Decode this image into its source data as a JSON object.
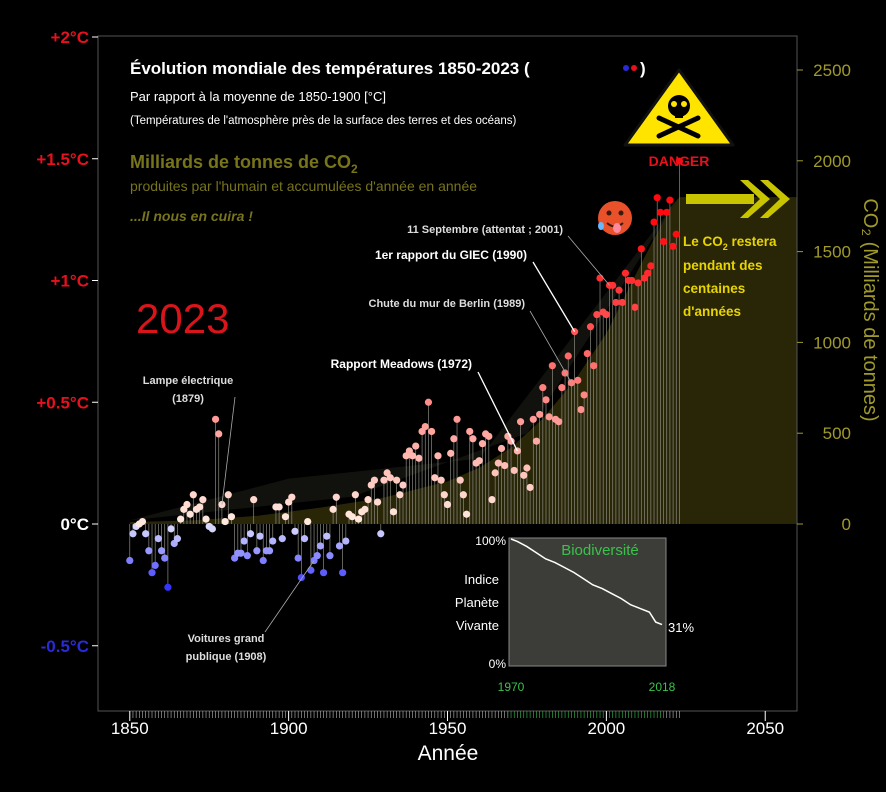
{
  "title": "Évolution mondiale des températures 1850-2023 (",
  "title_close": ")",
  "subtitle1": "Par rapport à la moyenne de 1850-1900 [°C]",
  "subtitle2": "(Températures de l'atmosphère près de la surface des terres et des océans)",
  "co2_heading": "Milliards de tonnes de CO",
  "co2_heading_sub": "2",
  "co2_line2": "produites par l'humain et accumulées d'année en année",
  "co2_line3": "...Il nous en cuira !",
  "year_big": "2023",
  "danger": "DANGER",
  "co2_stays": [
    "Le CO",
    "2",
    " restera",
    "pendant des",
    "centaines",
    "d'années"
  ],
  "colors": {
    "warm": "#e8101c",
    "cool": "#2a2ad8",
    "olive": "#a09a2a",
    "co2_fill": "#2b2808",
    "yellow": "#ffe400",
    "green": "#39c34a",
    "panel": "#3c3c38"
  },
  "chart_data": {
    "type": "scatter",
    "xlabel": "Année",
    "ylabel_left": "",
    "ylabel_right": "CO₂ (Milliards de tonnes)",
    "xlim": [
      1840,
      2060
    ],
    "ylim_temp": [
      -0.75,
      2.0
    ],
    "ylim_co2": [
      0,
      2640
    ],
    "x_ticks": [
      "1850",
      "1900",
      "1950",
      "2000",
      "2050"
    ],
    "y_ticks_left": [
      "+2°C",
      "+1.5°C",
      "+1°C",
      "+0.5°C",
      "0°C",
      "-0.5°C"
    ],
    "y_ticks_right": [
      "2500",
      "2000",
      "1500",
      "1000",
      "500",
      "0"
    ],
    "temperature_anomaly": {
      "years": [
        1850,
        1851,
        1852,
        1853,
        1854,
        1855,
        1856,
        1857,
        1858,
        1859,
        1860,
        1861,
        1862,
        1863,
        1864,
        1865,
        1866,
        1867,
        1868,
        1869,
        1870,
        1871,
        1872,
        1873,
        1874,
        1875,
        1876,
        1877,
        1878,
        1879,
        1880,
        1881,
        1882,
        1883,
        1884,
        1885,
        1886,
        1887,
        1888,
        1889,
        1890,
        1891,
        1892,
        1893,
        1894,
        1895,
        1896,
        1897,
        1898,
        1899,
        1900,
        1901,
        1902,
        1903,
        1904,
        1905,
        1906,
        1907,
        1908,
        1909,
        1910,
        1911,
        1912,
        1913,
        1914,
        1915,
        1916,
        1917,
        1918,
        1919,
        1920,
        1921,
        1922,
        1923,
        1924,
        1925,
        1926,
        1927,
        1928,
        1929,
        1930,
        1931,
        1932,
        1933,
        1934,
        1935,
        1936,
        1937,
        1938,
        1939,
        1940,
        1941,
        1942,
        1943,
        1944,
        1945,
        1946,
        1947,
        1948,
        1949,
        1950,
        1951,
        1952,
        1953,
        1954,
        1955,
        1956,
        1957,
        1958,
        1959,
        1960,
        1961,
        1962,
        1963,
        1964,
        1965,
        1966,
        1967,
        1968,
        1969,
        1970,
        1971,
        1972,
        1973,
        1974,
        1975,
        1976,
        1977,
        1978,
        1979,
        1980,
        1981,
        1982,
        1983,
        1984,
        1985,
        1986,
        1987,
        1988,
        1989,
        1990,
        1991,
        1992,
        1993,
        1994,
        1995,
        1996,
        1997,
        1998,
        1999,
        2000,
        2001,
        2002,
        2003,
        2004,
        2005,
        2006,
        2007,
        2008,
        2009,
        2010,
        2011,
        2012,
        2013,
        2014,
        2015,
        2016,
        2017,
        2018,
        2019,
        2020,
        2021,
        2022,
        2023
      ],
      "values": [
        -0.15,
        -0.04,
        -0.01,
        0.0,
        0.01,
        -0.04,
        -0.11,
        -0.2,
        -0.17,
        -0.06,
        -0.11,
        -0.14,
        -0.26,
        -0.02,
        -0.08,
        -0.06,
        0.02,
        0.06,
        0.08,
        0.04,
        0.12,
        0.06,
        0.07,
        0.1,
        0.02,
        -0.01,
        -0.02,
        0.43,
        0.37,
        0.08,
        0.01,
        0.12,
        0.03,
        -0.14,
        -0.12,
        -0.12,
        -0.07,
        -0.13,
        -0.04,
        0.1,
        -0.11,
        -0.05,
        -0.15,
        -0.11,
        -0.11,
        -0.07,
        0.07,
        0.07,
        -0.06,
        0.03,
        0.09,
        0.11,
        -0.03,
        -0.14,
        -0.22,
        -0.06,
        0.01,
        -0.19,
        -0.15,
        -0.13,
        -0.09,
        -0.2,
        -0.05,
        -0.13,
        0.06,
        0.11,
        -0.09,
        -0.2,
        -0.07,
        0.04,
        0.03,
        0.12,
        0.02,
        0.05,
        0.06,
        0.1,
        0.16,
        0.18,
        0.09,
        -0.04,
        0.18,
        0.21,
        0.19,
        0.05,
        0.18,
        0.12,
        0.16,
        0.28,
        0.3,
        0.28,
        0.32,
        0.27,
        0.38,
        0.4,
        0.5,
        0.38,
        0.19,
        0.28,
        0.18,
        0.12,
        0.08,
        0.29,
        0.35,
        0.43,
        0.18,
        0.12,
        0.04,
        0.38,
        0.35,
        0.25,
        0.26,
        0.33,
        0.37,
        0.36,
        0.1,
        0.21,
        0.25,
        0.31,
        0.24,
        0.36,
        0.34,
        0.22,
        0.3,
        0.42,
        0.2,
        0.23,
        0.15,
        0.43,
        0.34,
        0.45,
        0.56,
        0.51,
        0.44,
        0.65,
        0.43,
        0.42,
        0.56,
        0.62,
        0.69,
        0.58,
        0.79,
        0.59,
        0.47,
        0.53,
        0.7,
        0.81,
        0.65,
        0.86,
        1.01,
        0.87,
        0.86,
        0.98,
        0.98,
        0.91,
        0.96,
        0.91,
        1.03,
        1.0,
        1.0,
        0.89,
        0.99,
        1.13,
        1.01,
        1.03,
        1.06,
        1.24,
        1.34,
        1.28,
        1.16,
        1.28,
        1.33,
        1.14,
        1.19,
        1.49
      ]
    },
    "co2_cumulative": {
      "years": [
        1850,
        1870,
        1890,
        1910,
        1930,
        1950,
        1960,
        1970,
        1980,
        1990,
        2000,
        2010,
        2020,
        2023
      ],
      "values": [
        10,
        20,
        45,
        90,
        145,
        235,
        310,
        420,
        580,
        790,
        1050,
        1400,
        1740,
        1800
      ]
    },
    "annotations": [
      {
        "text": "Lampe électrique",
        "text2": "(1879)",
        "year": 1879
      },
      {
        "text": "Voitures grand",
        "text2": "publique (1908)",
        "year": 1908
      },
      {
        "text": "Rapport Meadows (1972)",
        "year": 1972
      },
      {
        "text": "Chute du mur de Berlin (1989)",
        "year": 1989
      },
      {
        "text": "1er rapport du GIEC (1990)",
        "year": 1990
      },
      {
        "text": "11 Septembre (attentat ; 2001)",
        "year": 2001
      }
    ],
    "inset": {
      "title": "Biodiversité",
      "ylabel_lines": [
        "Indice",
        "Planète",
        "Vivante"
      ],
      "y_ticks": [
        "100%",
        "0%"
      ],
      "x_ticks": [
        "1970",
        "2018"
      ],
      "end_label": "31%",
      "x": [
        1970,
        1972,
        1975,
        1978,
        1981,
        1984,
        1987,
        1990,
        1993,
        1996,
        1999,
        2002,
        2005,
        2008,
        2011,
        2014,
        2016,
        2018
      ],
      "values": [
        100,
        98,
        94,
        89,
        84,
        81,
        77,
        73,
        68,
        63,
        60,
        56,
        52,
        47,
        44,
        41,
        33,
        31
      ]
    }
  }
}
